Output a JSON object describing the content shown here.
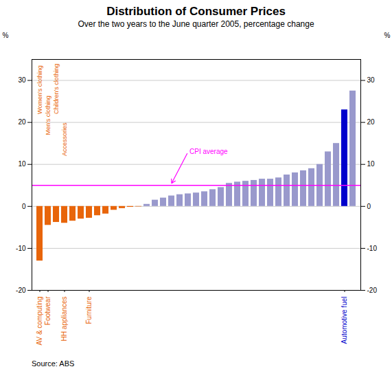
{
  "chart_data": {
    "type": "bar",
    "title": "Distribution of Consumer Prices",
    "subtitle": "Over the two years to the June quarter 2005, percentage change",
    "source": "Source: ABS",
    "ylabel": "%",
    "y2label": "%",
    "categories": [
      "AV & computing",
      "Footwear",
      null,
      "HH appliances",
      null,
      null,
      "Furniture",
      null,
      null,
      null,
      null,
      null,
      null,
      null,
      null,
      null,
      null,
      null,
      null,
      null,
      null,
      null,
      null,
      null,
      null,
      null,
      null,
      null,
      null,
      null,
      null,
      null,
      null,
      null,
      null,
      null,
      null,
      "Automotive fuel",
      null
    ],
    "values": [
      -13.0,
      -4.5,
      -3.8,
      -4.0,
      -3.5,
      -3.0,
      -2.8,
      -2.2,
      -1.8,
      -0.9,
      -0.5,
      -0.2,
      -0.1,
      0.5,
      1.5,
      2.0,
      2.5,
      2.8,
      3.0,
      3.2,
      3.5,
      4.0,
      4.5,
      5.5,
      5.8,
      6.0,
      6.2,
      6.5,
      6.5,
      6.8,
      7.5,
      8.0,
      8.5,
      9.0,
      10.0,
      13.0,
      15.0,
      23.0,
      27.5
    ],
    "colors": [
      "#E8650A",
      "#E8650A",
      "#E8650A",
      "#E8650A",
      "#E8650A",
      "#E8650A",
      "#E8650A",
      "#E8650A",
      "#E8650A",
      "#E8650A",
      "#E8650A",
      "#E8650A",
      "#E8650A",
      "#9999CC",
      "#9999CC",
      "#9999CC",
      "#9999CC",
      "#9999CC",
      "#9999CC",
      "#9999CC",
      "#9999CC",
      "#9999CC",
      "#9999CC",
      "#9999CC",
      "#9999CC",
      "#9999CC",
      "#9999CC",
      "#9999CC",
      "#9999CC",
      "#9999CC",
      "#9999CC",
      "#9999CC",
      "#9999CC",
      "#9999CC",
      "#9999CC",
      "#9999CC",
      "#9999CC",
      "#0000CC",
      "#9999CC"
    ],
    "ylim": [
      -20,
      35
    ],
    "yticks": [
      -20,
      -10,
      0,
      10,
      20,
      30
    ],
    "y2lim": [
      -20,
      35
    ],
    "y2ticks": [
      -20,
      -10,
      0,
      10,
      20,
      30
    ],
    "grid": true,
    "reference_lines": [
      {
        "y": 5.0,
        "color": "magenta"
      }
    ],
    "annotations": [
      {
        "text": "Women's clothing",
        "x": 0,
        "y": 22,
        "color": "#E8650A"
      },
      {
        "text": "Men's clothing",
        "x": 1,
        "y": 17,
        "color": "#E8650A"
      },
      {
        "text": "Children's clothing",
        "x": 2,
        "y": 22,
        "color": "#E8650A"
      },
      {
        "text": "Accessories",
        "x": 3,
        "y": 12,
        "color": "#E8650A"
      },
      {
        "text": "CPI average",
        "x": 18,
        "y": 13,
        "color": "magenta",
        "arrow_x": 16,
        "arrow_y": 5.5
      }
    ]
  }
}
